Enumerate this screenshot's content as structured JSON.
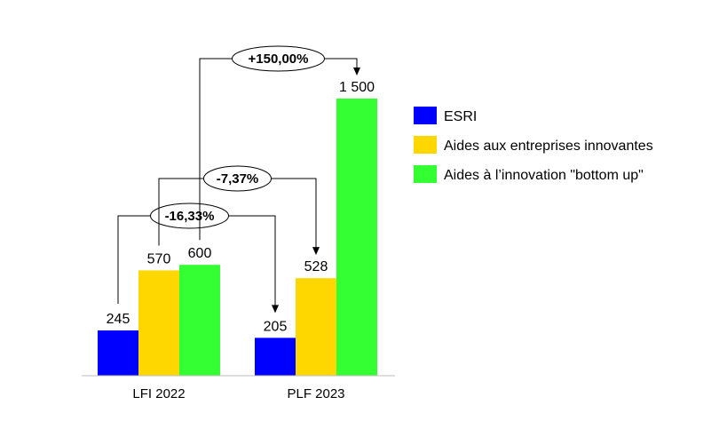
{
  "chart_data": {
    "type": "bar",
    "categories": [
      "LFI 2022",
      "PLF 2023"
    ],
    "series": [
      {
        "name": "ESRI",
        "values": [
          245,
          205
        ],
        "color": "#0000ff"
      },
      {
        "name": "Aides aux entreprises innovantes",
        "values": [
          570,
          528
        ],
        "color": "#ffd700"
      },
      {
        "name": "Aides à l’innovation \"bottom up\"",
        "values": [
          600,
          1500
        ],
        "color": "#33ff33"
      }
    ],
    "value_labels": [
      [
        "245",
        "205"
      ],
      [
        "570",
        "528"
      ],
      [
        "600",
        "1 500"
      ]
    ],
    "legend_position": "right",
    "annotations": [
      {
        "text": "-16,33%",
        "series": 0
      },
      {
        "text": "-7,37%",
        "series": 1
      },
      {
        "text": "+150,00%",
        "series": 2
      }
    ]
  }
}
